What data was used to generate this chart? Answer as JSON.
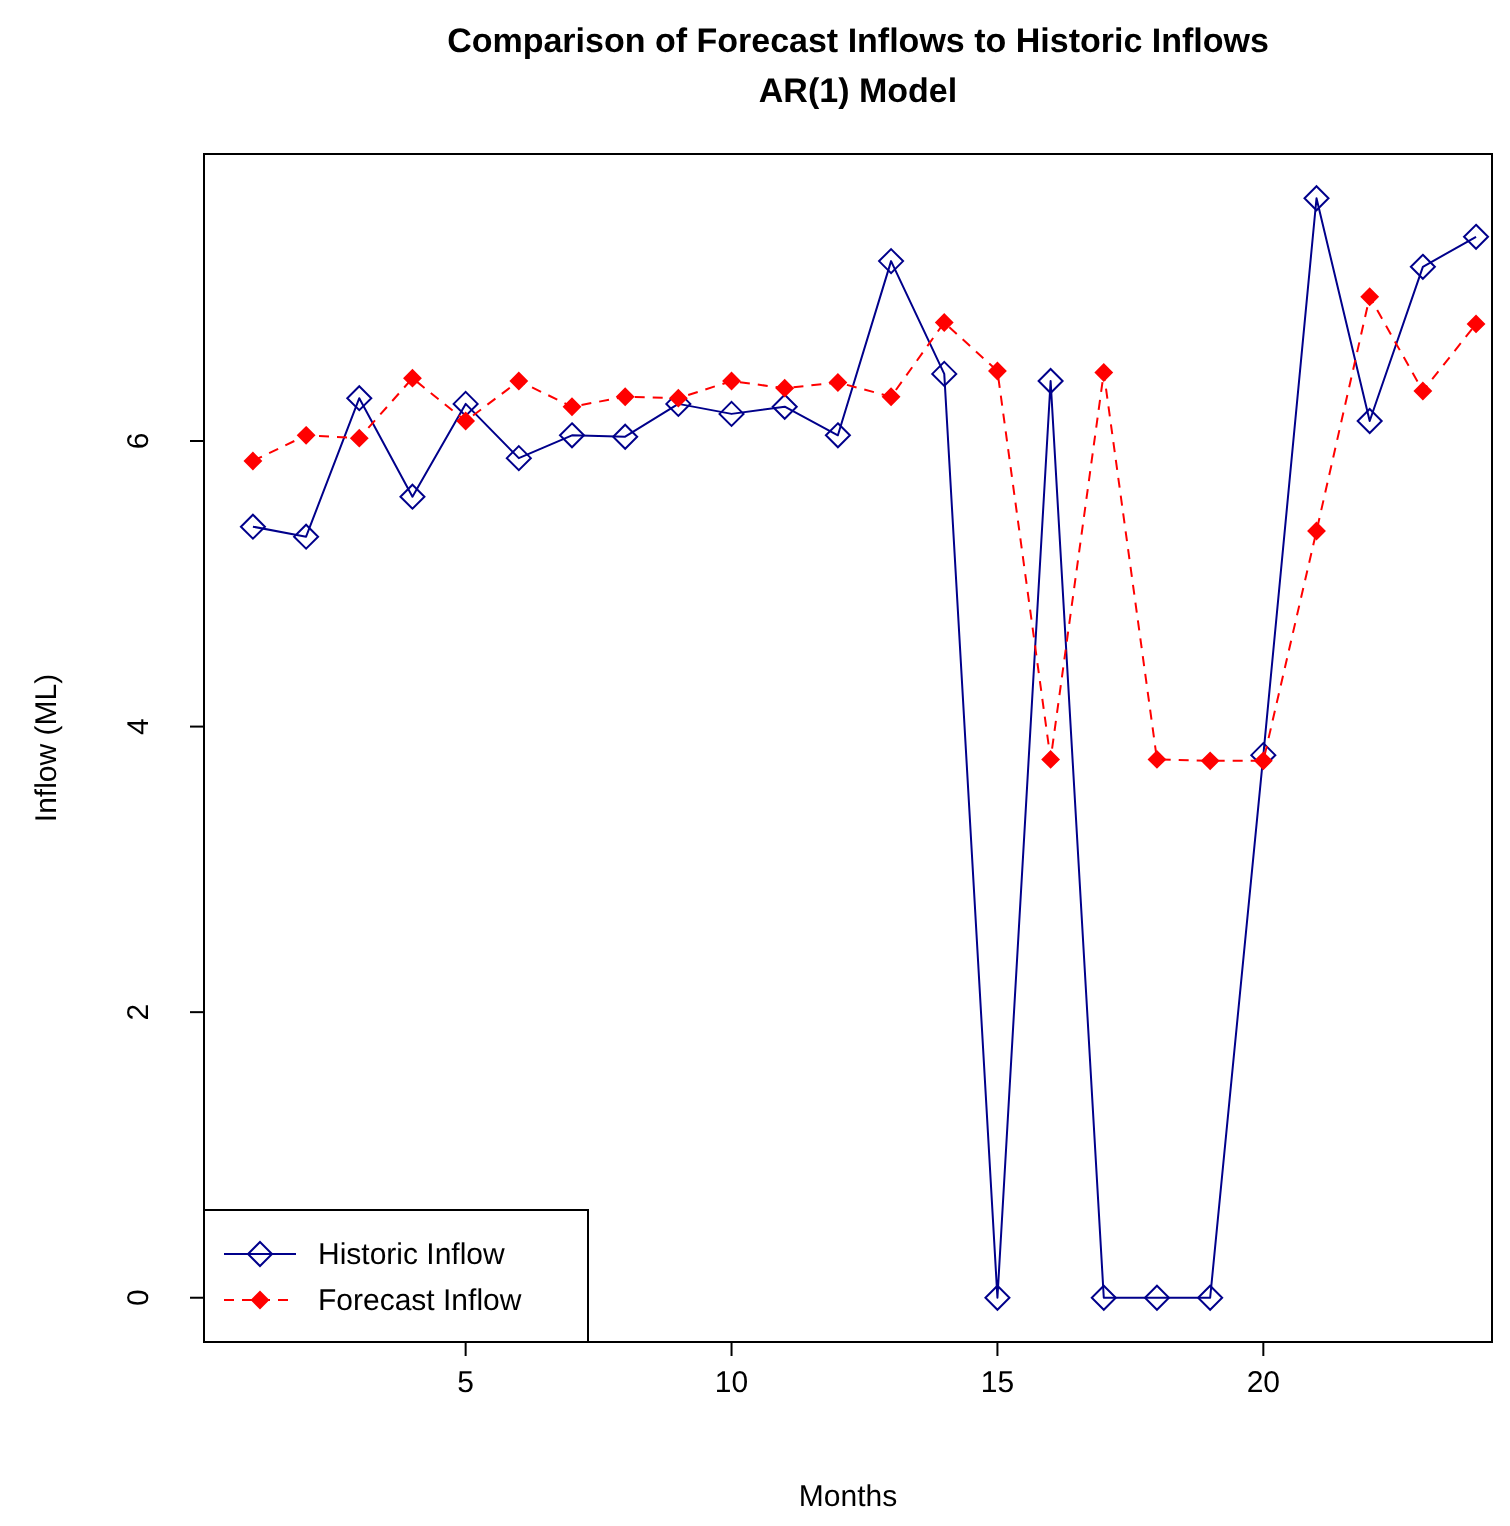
{
  "chart_data": {
    "type": "line",
    "title": "Comparison of Forecast Inflows to Historic Inflows",
    "subtitle": "AR(1) Model",
    "xlabel": "Months",
    "ylabel": "Inflow (ML)",
    "x": [
      1,
      2,
      3,
      4,
      5,
      6,
      7,
      8,
      9,
      10,
      11,
      12,
      13,
      14,
      15,
      16,
      17,
      18,
      19,
      20,
      21,
      22,
      23,
      24
    ],
    "series": [
      {
        "name": "Historic Inflow",
        "color": "#00008b",
        "marker": "diamond",
        "line_style": "solid",
        "values": [
          5.4,
          5.33,
          6.3,
          5.61,
          6.26,
          5.88,
          6.04,
          6.03,
          6.26,
          6.19,
          6.24,
          6.04,
          7.26,
          6.47,
          0,
          6.42,
          0,
          0,
          0,
          3.8,
          7.7,
          6.14,
          7.22,
          7.43
        ]
      },
      {
        "name": "Forecast Inflow",
        "color": "#ff0000",
        "marker": "diamond",
        "line_style": "dashed",
        "values": [
          5.86,
          6.04,
          6.02,
          6.44,
          6.14,
          6.42,
          6.24,
          6.31,
          6.3,
          6.42,
          6.37,
          6.41,
          6.31,
          6.83,
          6.49,
          3.77,
          6.48,
          3.77,
          3.76,
          3.76,
          5.37,
          7.01,
          6.35,
          6.82
        ]
      }
    ],
    "xlim": [
      0.08,
      24.3
    ],
    "ylim": [
      -0.31,
      8.01
    ],
    "xticks": [
      5,
      10,
      15,
      20
    ],
    "yticks": [
      0,
      2,
      4,
      6
    ],
    "legend": "bottom left",
    "grid": false
  }
}
